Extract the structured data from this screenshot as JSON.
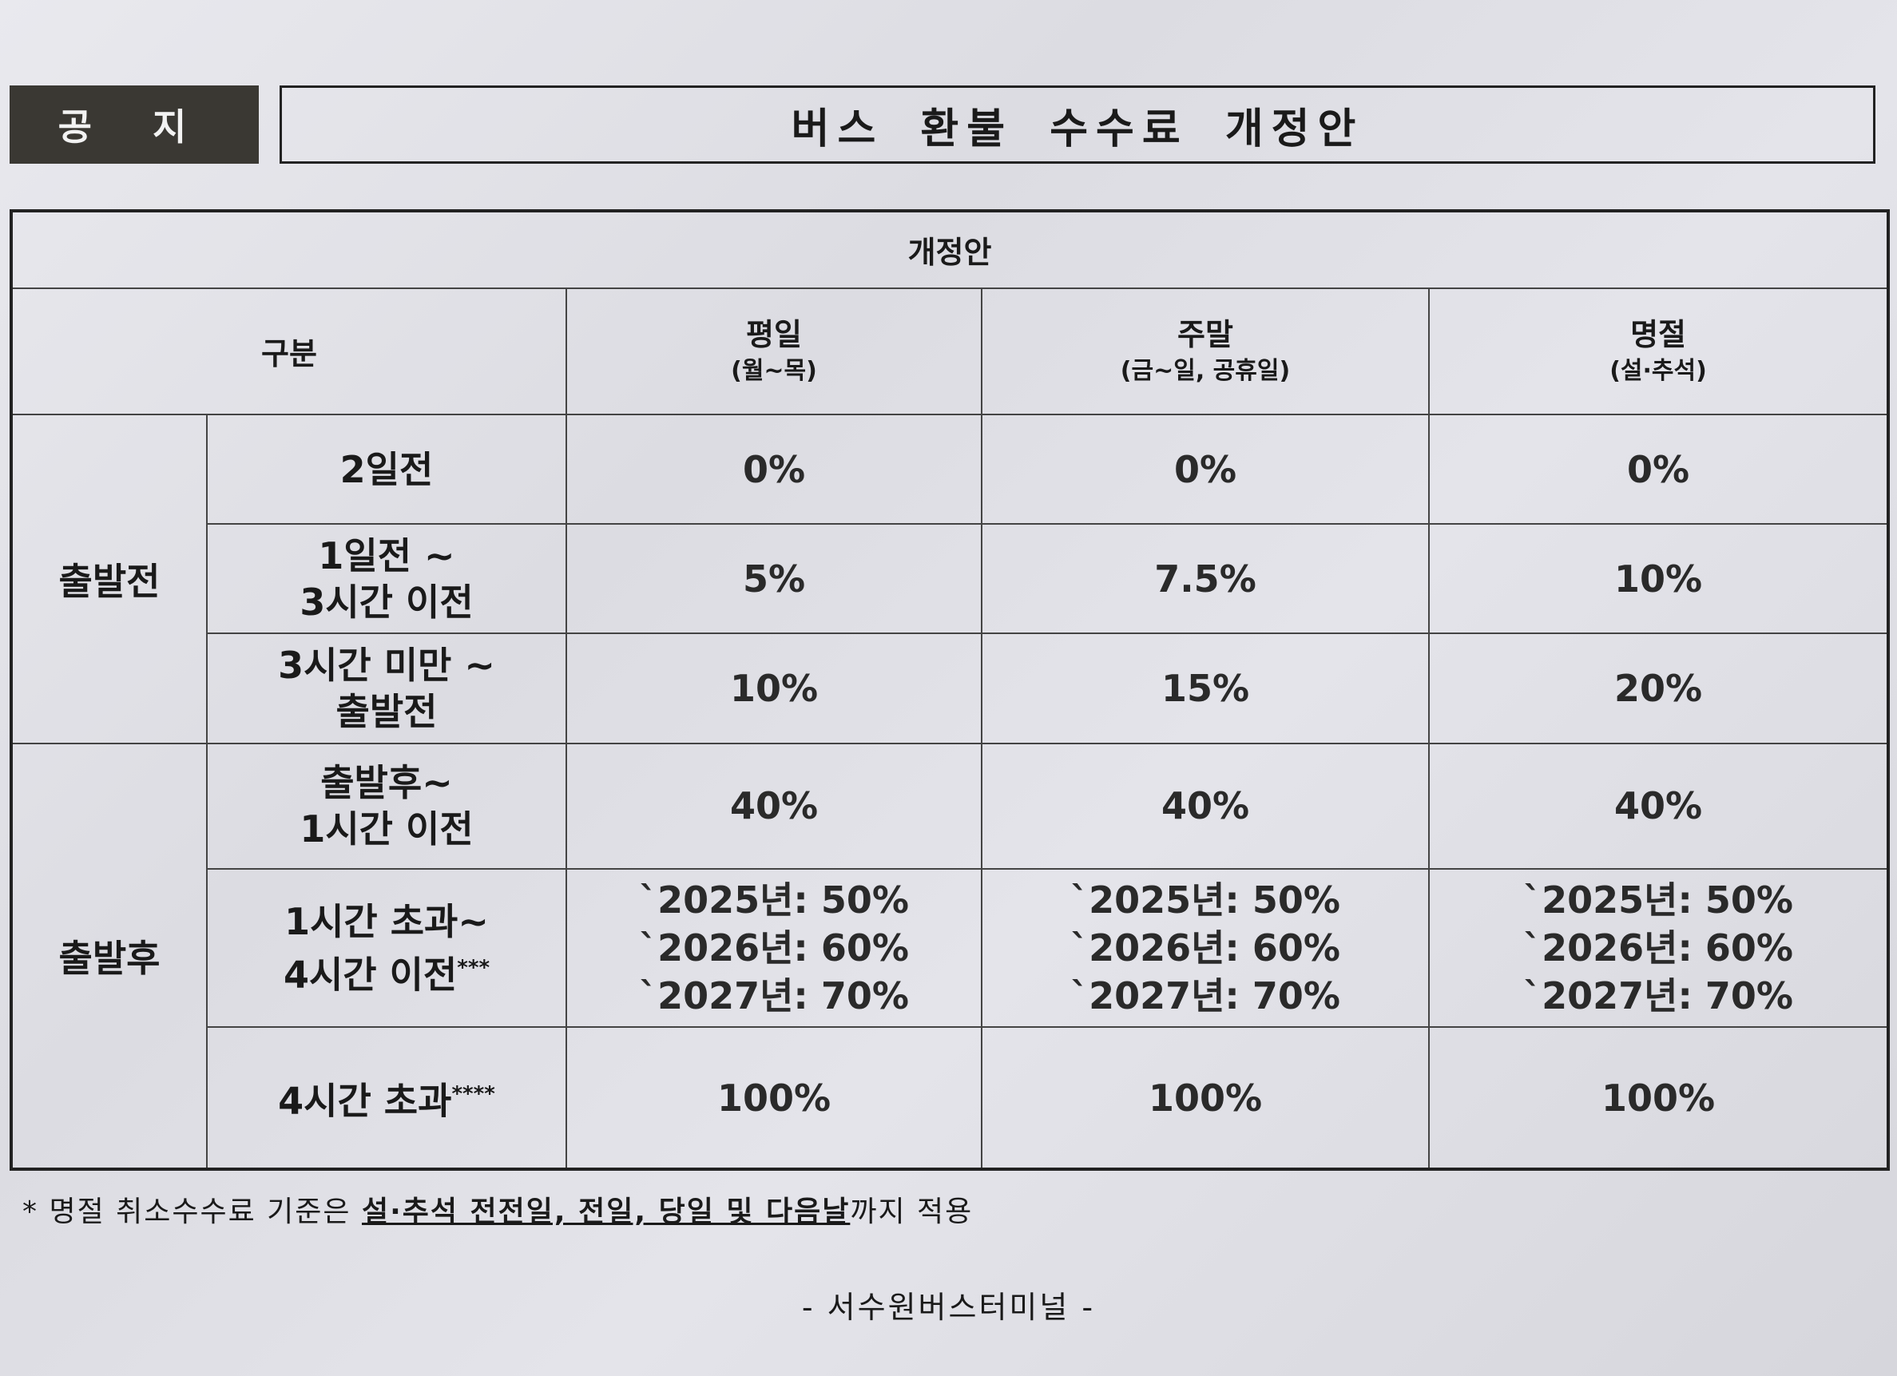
{
  "header": {
    "badge": "공 지",
    "title": "버스 환불 수수료 개정안"
  },
  "table": {
    "caption": "개정안",
    "category_header": "구분",
    "columns": [
      {
        "name": "평일",
        "sub": "(월~목)"
      },
      {
        "name": "주말",
        "sub": "(금~일, 공휴일)"
      },
      {
        "name": "명절",
        "sub": "(설·추석)"
      }
    ],
    "groups": [
      {
        "label": "출발전",
        "rows": [
          {
            "cond": [
              "2일전"
            ],
            "mark": "",
            "vals": [
              [
                "0%"
              ],
              [
                "0%"
              ],
              [
                "0%"
              ]
            ]
          },
          {
            "cond": [
              "1일전 ~",
              "3시간 이전"
            ],
            "mark": "",
            "vals": [
              [
                "5%"
              ],
              [
                "7.5%"
              ],
              [
                "10%"
              ]
            ]
          },
          {
            "cond": [
              "3시간 미만 ~",
              "출발전"
            ],
            "mark": "",
            "vals": [
              [
                "10%"
              ],
              [
                "15%"
              ],
              [
                "20%"
              ]
            ]
          }
        ]
      },
      {
        "label": "출발후",
        "rows": [
          {
            "cond": [
              "출발후~",
              "1시간 이전"
            ],
            "mark": "",
            "vals": [
              [
                "40%"
              ],
              [
                "40%"
              ],
              [
                "40%"
              ]
            ]
          },
          {
            "cond": [
              "1시간 초과~",
              "4시간 이전"
            ],
            "mark": "***",
            "vals": [
              [
                "`2025년: 50%",
                "`2026년: 60%",
                "`2027년: 70%"
              ],
              [
                "`2025년: 50%",
                "`2026년: 60%",
                "`2027년: 70%"
              ],
              [
                "`2025년: 50%",
                "`2026년: 60%",
                "`2027년: 70%"
              ]
            ]
          },
          {
            "cond": [
              "4시간 초과"
            ],
            "mark": "****",
            "vals": [
              [
                "100%"
              ],
              [
                "100%"
              ],
              [
                "100%"
              ]
            ]
          }
        ]
      }
    ]
  },
  "footnote": {
    "prefix": "* 명절 취소수수료 기준은 ",
    "underlined": "설·추석 전전일, 전일, 당일 및 다음날",
    "suffix": "까지 적용"
  },
  "signature": "- 서수원버스터미널 -"
}
